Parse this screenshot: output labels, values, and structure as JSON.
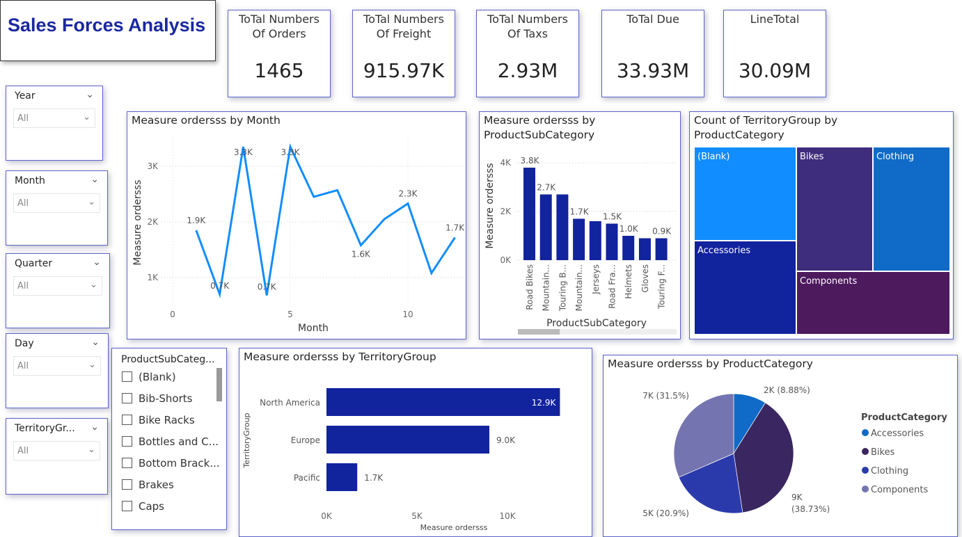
{
  "title": "Sales  Forces Analysis",
  "cards": [
    {
      "label": "ToTal Numbers Of Orders",
      "value": "1465"
    },
    {
      "label": "ToTal Numbers Of Freight",
      "value": "915.97K"
    },
    {
      "label": "ToTal Numbers Of Taxs",
      "value": "2.93M"
    },
    {
      "label": "ToTal Due",
      "value": "33.93M"
    },
    {
      "label": "LineTotal",
      "value": "30.09M"
    }
  ],
  "slicers": [
    {
      "label": "Year",
      "value": "All"
    },
    {
      "label": "Month",
      "value": "All"
    },
    {
      "label": "Quarter",
      "value": "All"
    },
    {
      "label": "Day",
      "value": "All"
    },
    {
      "label": "TerritoryGr...",
      "value": "All"
    }
  ],
  "subcat_slicer": {
    "label": "ProductSubCateg...",
    "items": [
      "(Blank)",
      "Bib-Shorts",
      "Bike Racks",
      "Bottles and C...",
      "Bottom Brack...",
      "Brakes",
      "Caps"
    ]
  },
  "colors": {
    "line": "#118dff",
    "bar": "#12239e",
    "accent": "#1a28a0"
  },
  "chart_data": [
    {
      "type": "line",
      "title": "Measure ordersss by Month",
      "xlabel": "Month",
      "ylabel": "Measure ordersss",
      "x": [
        1,
        2,
        3,
        4,
        5,
        6,
        7,
        8,
        9,
        10,
        11,
        12
      ],
      "values": [
        1850,
        700,
        3350,
        680,
        3350,
        2450,
        2570,
        1580,
        2050,
        2330,
        1080,
        1720
      ],
      "data_labels": [
        "1.9K",
        "0.7K",
        "3.3K",
        "0.7K",
        "3.3K",
        "",
        "",
        "1.6K",
        "",
        "2.3K",
        "",
        "1.7K"
      ],
      "xticks": [
        "0",
        "5",
        "10"
      ],
      "yticks": [
        "1K",
        "2K",
        "3K"
      ],
      "grid": true
    },
    {
      "type": "bar",
      "title": "Measure ordersss by ProductSubCategory",
      "xlabel": "ProductSubCategory",
      "ylabel": "Measure ordersss",
      "categories": [
        "Road Bikes",
        "Mountain...",
        "Touring B...",
        "Mountain...",
        "Jerseys",
        "Road Fra...",
        "Helmets",
        "Gloves",
        "Touring F..."
      ],
      "values": [
        3800,
        2700,
        2700,
        1700,
        1600,
        1500,
        1000,
        900,
        900
      ],
      "data_labels": [
        "3.8K",
        "2.7K",
        "",
        "1.7K",
        "",
        "1.5K",
        "1.0K",
        "",
        "0.9K"
      ],
      "yticks": [
        "0K",
        "2K",
        "4K"
      ],
      "ylim": [
        0,
        4000
      ]
    },
    {
      "type": "treemap",
      "title": "Count of TerritoryGroup by ProductCategory",
      "categories": [
        "(Blank)",
        "Bikes",
        "Clothing",
        "Accessories",
        "Components"
      ],
      "colors": [
        "#118dff",
        "#3e2c7c",
        "#0f6bc7",
        "#12239e",
        "#4d1a5e"
      ]
    },
    {
      "type": "bar",
      "orientation": "horizontal",
      "title": "Measure ordersss by TerritoryGroup",
      "xlabel": "Measure ordersss",
      "ylabel": "TerritoryGroup",
      "categories": [
        "North America",
        "Europe",
        "Pacific"
      ],
      "values": [
        12900,
        9000,
        1700
      ],
      "data_labels": [
        "12.9K",
        "9.0K",
        "1.7K"
      ],
      "xticks": [
        "0K",
        "5K",
        "10K"
      ]
    },
    {
      "type": "pie",
      "title": "Measure ordersss by ProductCategory",
      "legend_title": "ProductCategory",
      "legend": "right",
      "categories": [
        "Accessories",
        "Bikes",
        "Clothing",
        "Components"
      ],
      "values": [
        8.88,
        38.73,
        20.9,
        31.5
      ],
      "data_labels": [
        "2K (8.88%)",
        "9K (38.73%)",
        "5K (20.9%)",
        "7K (31.5%)"
      ],
      "colors": [
        "#0f6bc7",
        "#3a2660",
        "#2b3aab",
        "#7474b0"
      ]
    }
  ]
}
